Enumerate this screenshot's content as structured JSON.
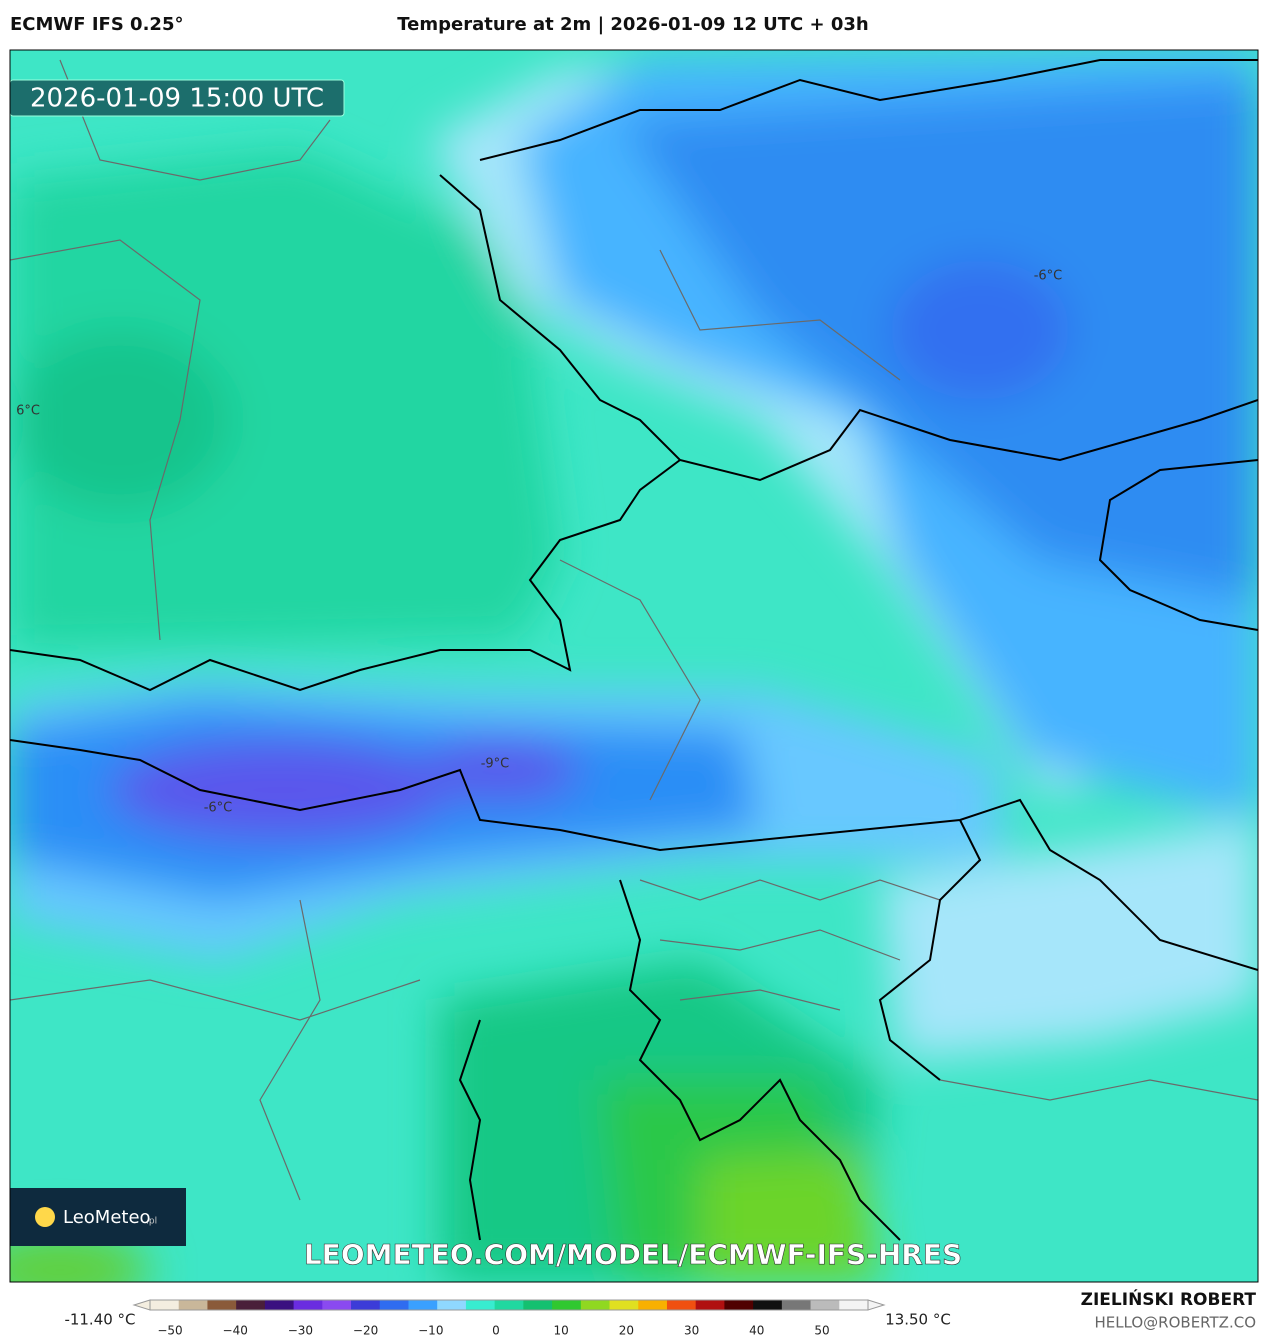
{
  "header": {
    "model": "ECMWF IFS 0.25°",
    "title": "Temperature at 2m | 2026-01-09 12 UTC + 03h"
  },
  "map": {
    "timestamp": "2026-01-09 15:00 UTC",
    "contour_labels": [
      "6°C",
      "-6°C",
      "-9°C",
      "-6°C"
    ],
    "logo": "LeoMeteo",
    "logo_suffix": ".pl",
    "url": "LEOMETEO.COM/MODEL/ECMWF-IFS-HRES"
  },
  "colorbar": {
    "min_label": "-11.40 °C",
    "max_label": "13.50 °C",
    "ticks": [
      "−50",
      "−40",
      "−30",
      "−20",
      "−10",
      "0",
      "10",
      "20",
      "30",
      "40",
      "50"
    ],
    "colors": [
      "#f4eee0",
      "#c9b79a",
      "#8a5a3a",
      "#4a1f3a",
      "#3a1080",
      "#6a2ce0",
      "#8a4af0",
      "#3c3cd8",
      "#2f6cf0",
      "#3aa0ff",
      "#8fd8ff",
      "#38ecd0",
      "#20d8a0",
      "#14c070",
      "#30c830",
      "#90d820",
      "#e0e020",
      "#f8b000",
      "#f05010",
      "#b01010",
      "#500000",
      "#101010",
      "#777777",
      "#bbbbbb",
      "#f4f4f4"
    ]
  },
  "credit": {
    "author": "ZIELIŃSKI ROBERT",
    "email": "HELLO@ROBERTZ.CO"
  }
}
